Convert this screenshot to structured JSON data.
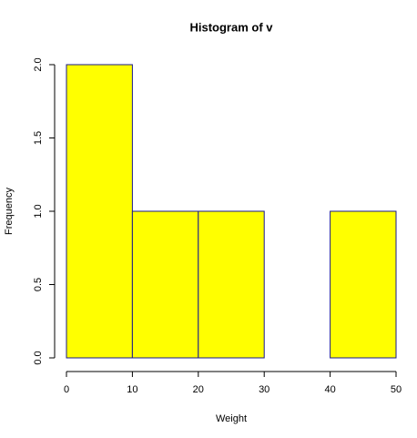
{
  "chart_data": {
    "type": "histogram",
    "title": "Histogram of v",
    "x_label": "Weight",
    "y_label": "Frequency",
    "bins": [
      0,
      10,
      20,
      30,
      40,
      50
    ],
    "values": [
      2,
      1,
      1,
      0,
      1
    ],
    "color": "#ffff00",
    "edge_color": "#1a1a8c",
    "xlim": [
      0,
      50
    ],
    "xticks": [
      0,
      10,
      20,
      30,
      40,
      50
    ],
    "ylim": [
      0,
      2
    ],
    "yticks": [
      {
        "value": 0,
        "label": "0.0"
      },
      0.5,
      {
        "value": 1,
        "label": "1.0"
      },
      1.5,
      {
        "value": 2,
        "label": "2.0"
      }
    ]
  }
}
